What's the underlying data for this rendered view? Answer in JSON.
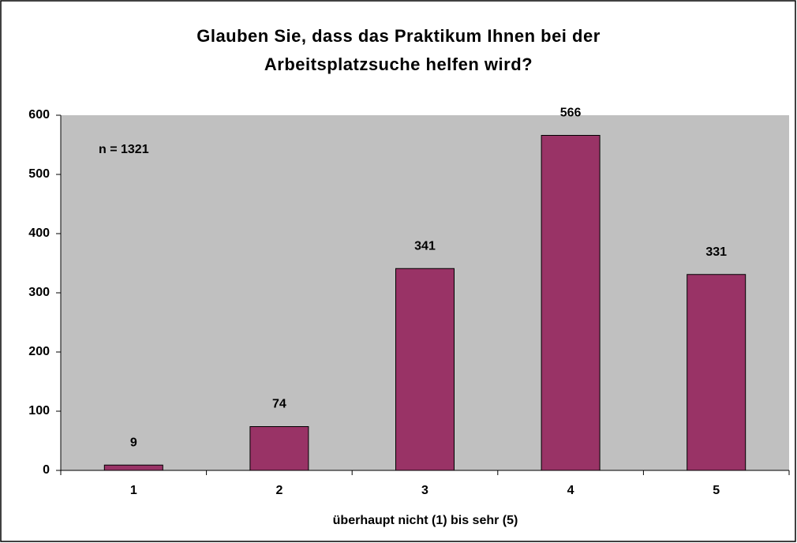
{
  "chart_data": {
    "type": "bar",
    "title": "Glauben Sie, dass das Praktikum Ihnen bei der Arbeitsplatzsuche helfen wird?",
    "annotation": "n = 1321",
    "x_label": "überhaupt nicht (1) bis sehr (5)",
    "categories": [
      "1",
      "2",
      "3",
      "4",
      "5"
    ],
    "values": [
      9,
      74,
      341,
      566,
      331
    ],
    "color": "#993366",
    "ylim": [
      0,
      600
    ],
    "yticks": [
      0,
      100,
      200,
      300,
      400,
      500,
      600
    ],
    "grid": false
  }
}
